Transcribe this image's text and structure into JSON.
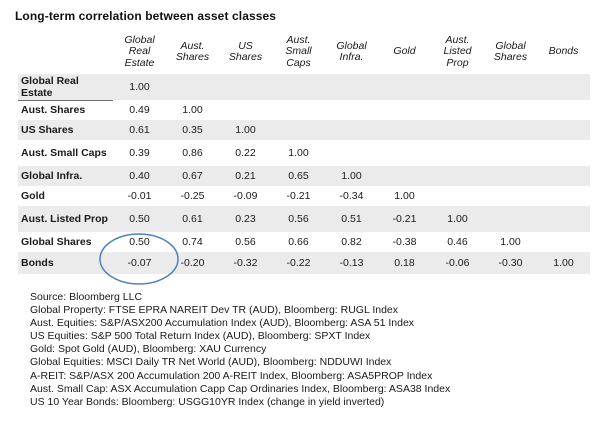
{
  "title": "Long-term correlation between asset classes",
  "table": {
    "corner_label": "",
    "columns": [
      "Global Real Estate",
      "Aust. Shares",
      "US Shares",
      "Aust. Small Caps",
      "Global Infra.",
      "Gold",
      "Aust. Listed Prop",
      "Global Shares",
      "Bonds"
    ],
    "rows": [
      {
        "label": "Global Real Estate",
        "values": [
          "1.00",
          "",
          "",
          "",
          "",
          "",
          "",
          "",
          ""
        ]
      },
      {
        "label": "Aust. Shares",
        "values": [
          "0.49",
          "1.00",
          "",
          "",
          "",
          "",
          "",
          "",
          ""
        ]
      },
      {
        "label": "US Shares",
        "values": [
          "0.61",
          "0.35",
          "1.00",
          "",
          "",
          "",
          "",
          "",
          ""
        ]
      },
      {
        "label": "Aust. Small Caps",
        "values": [
          "0.39",
          "0.86",
          "0.22",
          "1.00",
          "",
          "",
          "",
          "",
          ""
        ]
      },
      {
        "label": "Global Infra.",
        "values": [
          "0.40",
          "0.67",
          "0.21",
          "0.65",
          "1.00",
          "",
          "",
          "",
          ""
        ]
      },
      {
        "label": "Gold",
        "values": [
          "-0.01",
          "-0.25",
          "-0.09",
          "-0.21",
          "-0.34",
          "1.00",
          "",
          "",
          ""
        ]
      },
      {
        "label": "Aust. Listed Prop",
        "values": [
          "0.50",
          "0.61",
          "0.23",
          "0.56",
          "0.51",
          "-0.21",
          "1.00",
          "",
          ""
        ]
      },
      {
        "label": "Global Shares",
        "values": [
          "0.50",
          "0.74",
          "0.56",
          "0.66",
          "0.82",
          "-0.38",
          "0.46",
          "1.00",
          ""
        ]
      },
      {
        "label": "Bonds",
        "values": [
          "-0.07",
          "-0.20",
          "-0.32",
          "-0.22",
          "-0.13",
          "0.18",
          "-0.06",
          "-0.30",
          "1.00"
        ]
      }
    ]
  },
  "annotation": {
    "shape": "ellipse",
    "highlighted_value": "-0.07",
    "highlighted_row": "Bonds",
    "highlighted_column": "Global Real Estate",
    "stroke_color": "#4f81bd"
  },
  "colors": {
    "row_shade": "#ebebeb",
    "text": "#1a1a1a",
    "label_underline": "#6f6f6f"
  },
  "footnotes": [
    "Source: Bloomberg LLC",
    "Global Property: FTSE EPRA NAREIT Dev TR (AUD), Bloomberg: RUGL Index",
    "Aust. Equities: S&P/ASX200 Accumulation Index (AUD), Bloomberg: ASA 51 Index",
    "US Equities: S&P 500 Total Return Index (AUD), Bloomberg: SPXT Index",
    "Gold: Spot Gold (AUD), Bloomberg: XAU Currency",
    "Global Equities: MSCI Daily TR Net World (AUD), Bloomberg: NDDUWI Index",
    "A-REIT: S&P/ASX 200 Accumulation 200 A-REIT Index, Bloomberg: ASA5PROP Index",
    "Aust. Small Cap: ASX Accumulation Capp Cap Ordinaries Index, Bloomberg: ASA38 Index",
    "US 10 Year Bonds: Bloomberg: USGG10YR Index (change in yield inverted)"
  ]
}
